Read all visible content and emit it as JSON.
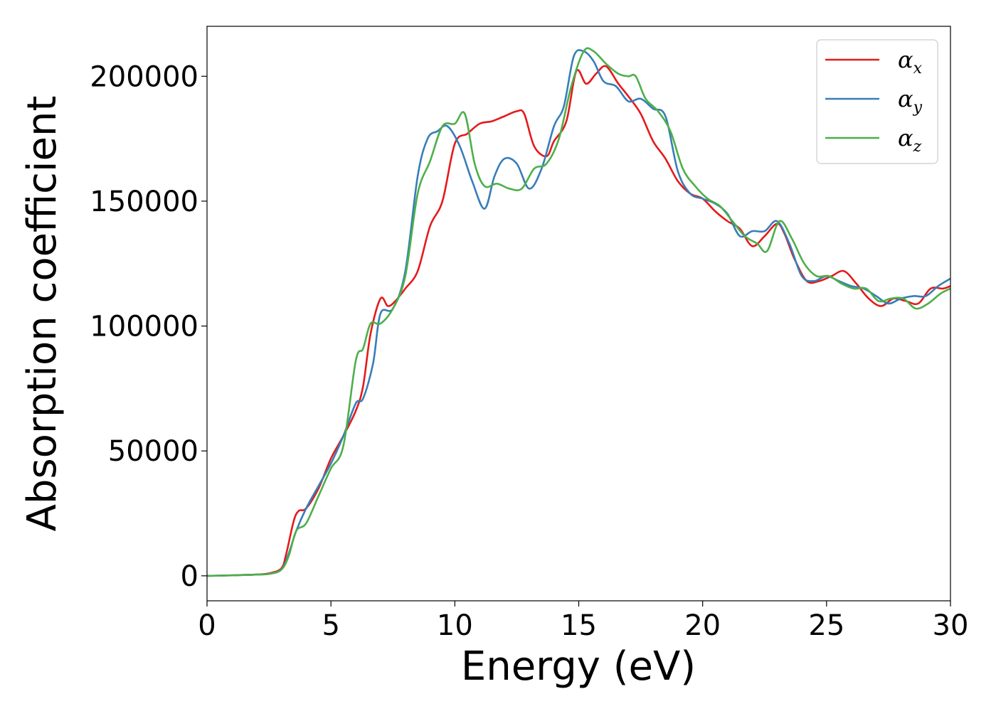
{
  "chart_data": {
    "type": "line",
    "xlabel": "Energy (eV)",
    "ylabel": "Absorption coefficient",
    "xlim": [
      0,
      30
    ],
    "ylim": [
      -10000,
      220000
    ],
    "xticks": [
      0,
      5,
      10,
      15,
      20,
      25,
      30
    ],
    "xtick_labels": [
      "0",
      "5",
      "10",
      "15",
      "20",
      "25",
      "30"
    ],
    "yticks": [
      0,
      50000,
      100000,
      150000,
      200000
    ],
    "ytick_labels": [
      "0",
      "50000",
      "100000",
      "150000",
      "200000"
    ],
    "grid": false,
    "legend_position": "top-right",
    "series": [
      {
        "name": "α",
        "subscript": "x",
        "color": "#e41a1c",
        "x": [
          0,
          1,
          2,
          2.5,
          3,
          3.2,
          3.5,
          3.7,
          4,
          4.5,
          5,
          5.5,
          6,
          6.3,
          6.6,
          7,
          7.3,
          7.6,
          8,
          8.5,
          9,
          9.5,
          10,
          10.5,
          11,
          11.5,
          12,
          12.5,
          12.8,
          13.2,
          13.7,
          14,
          14.5,
          14.9,
          15.3,
          15.7,
          16.1,
          16.6,
          17,
          17.5,
          18,
          18.5,
          19,
          19.5,
          20,
          20.5,
          21,
          21.5,
          22,
          22.5,
          23,
          23.3,
          23.7,
          24.2,
          24.7,
          25.2,
          25.7,
          26.2,
          26.7,
          27.2,
          27.7,
          28.2,
          28.7,
          29.2,
          29.7,
          30
        ],
        "y": [
          0,
          200,
          500,
          1000,
          3000,
          9000,
          22000,
          26000,
          27000,
          35000,
          47000,
          56000,
          66000,
          76000,
          97000,
          111000,
          108000,
          110000,
          115000,
          122000,
          140000,
          150000,
          173000,
          177000,
          181000,
          182000,
          184000,
          186000,
          185000,
          172000,
          168000,
          174000,
          182000,
          202000,
          197000,
          201000,
          204000,
          197000,
          192000,
          185000,
          174000,
          167000,
          158000,
          153000,
          151000,
          146000,
          142000,
          139000,
          132000,
          136000,
          141000,
          137000,
          127000,
          118000,
          118000,
          120000,
          122000,
          117000,
          111000,
          108000,
          111000,
          110000,
          109000,
          115000,
          115000,
          116000
        ]
      },
      {
        "name": "α",
        "subscript": "y",
        "color": "#377eb8",
        "x": [
          0,
          1,
          2,
          2.5,
          3,
          3.3,
          3.6,
          4,
          4.5,
          5,
          5.5,
          6,
          6.3,
          6.7,
          7,
          7.5,
          8,
          8.5,
          8.9,
          9.3,
          9.7,
          10.2,
          10.7,
          11.2,
          11.6,
          12,
          12.5,
          13,
          13.5,
          14,
          14.4,
          14.8,
          15.2,
          15.6,
          16,
          16.5,
          17,
          17.5,
          18,
          18.5,
          19,
          19.5,
          20,
          20.5,
          21,
          21.5,
          22,
          22.5,
          23,
          23.5,
          24,
          24.5,
          25,
          25.5,
          26,
          26.5,
          27,
          27.5,
          28,
          28.5,
          29,
          29.5,
          30
        ],
        "y": [
          0,
          200,
          500,
          800,
          2500,
          9000,
          18000,
          27000,
          36000,
          45000,
          56000,
          69000,
          71000,
          85000,
          105000,
          107000,
          122000,
          160000,
          175000,
          178000,
          180000,
          172000,
          158000,
          147000,
          160000,
          167000,
          165000,
          155000,
          163000,
          180000,
          188000,
          208000,
          210000,
          206000,
          198000,
          196000,
          190000,
          191000,
          187000,
          184000,
          162000,
          153000,
          151000,
          149000,
          145000,
          136000,
          138000,
          138000,
          142000,
          133000,
          120000,
          118000,
          120000,
          118000,
          116000,
          115000,
          112000,
          109000,
          111000,
          112000,
          112000,
          116000,
          119000
        ]
      },
      {
        "name": "α",
        "subscript": "z",
        "color": "#4daf4a",
        "x": [
          0,
          1,
          2,
          2.5,
          3,
          3.3,
          3.6,
          4,
          4.5,
          5,
          5.5,
          6,
          6.3,
          6.6,
          7,
          7.5,
          8,
          8.5,
          9,
          9.5,
          10,
          10.4,
          10.8,
          11.2,
          11.7,
          12.2,
          12.7,
          13.2,
          13.7,
          14.2,
          14.7,
          15.2,
          15.6,
          16.1,
          16.6,
          17,
          17.3,
          17.7,
          18.2,
          18.7,
          19.2,
          19.7,
          20.2,
          20.7,
          21.2,
          21.7,
          22.2,
          22.6,
          23.1,
          23.6,
          24.1,
          24.6,
          25.1,
          25.6,
          26.1,
          26.6,
          27.1,
          27.6,
          28.1,
          28.6,
          29.1,
          29.6,
          30
        ],
        "y": [
          0,
          200,
          500,
          800,
          2500,
          8000,
          18000,
          21000,
          32000,
          43000,
          52000,
          86000,
          91000,
          101000,
          101000,
          107000,
          120000,
          153000,
          166000,
          180000,
          181000,
          185000,
          165000,
          156000,
          157000,
          155000,
          155000,
          163000,
          165000,
          175000,
          196000,
          210000,
          210000,
          205000,
          201000,
          200000,
          200000,
          191000,
          186000,
          178000,
          163000,
          156000,
          151000,
          148000,
          142000,
          136000,
          133000,
          130000,
          142000,
          135000,
          125000,
          120000,
          120000,
          117000,
          115000,
          115000,
          110000,
          111000,
          111000,
          107000,
          109000,
          113000,
          115000
        ]
      }
    ]
  }
}
